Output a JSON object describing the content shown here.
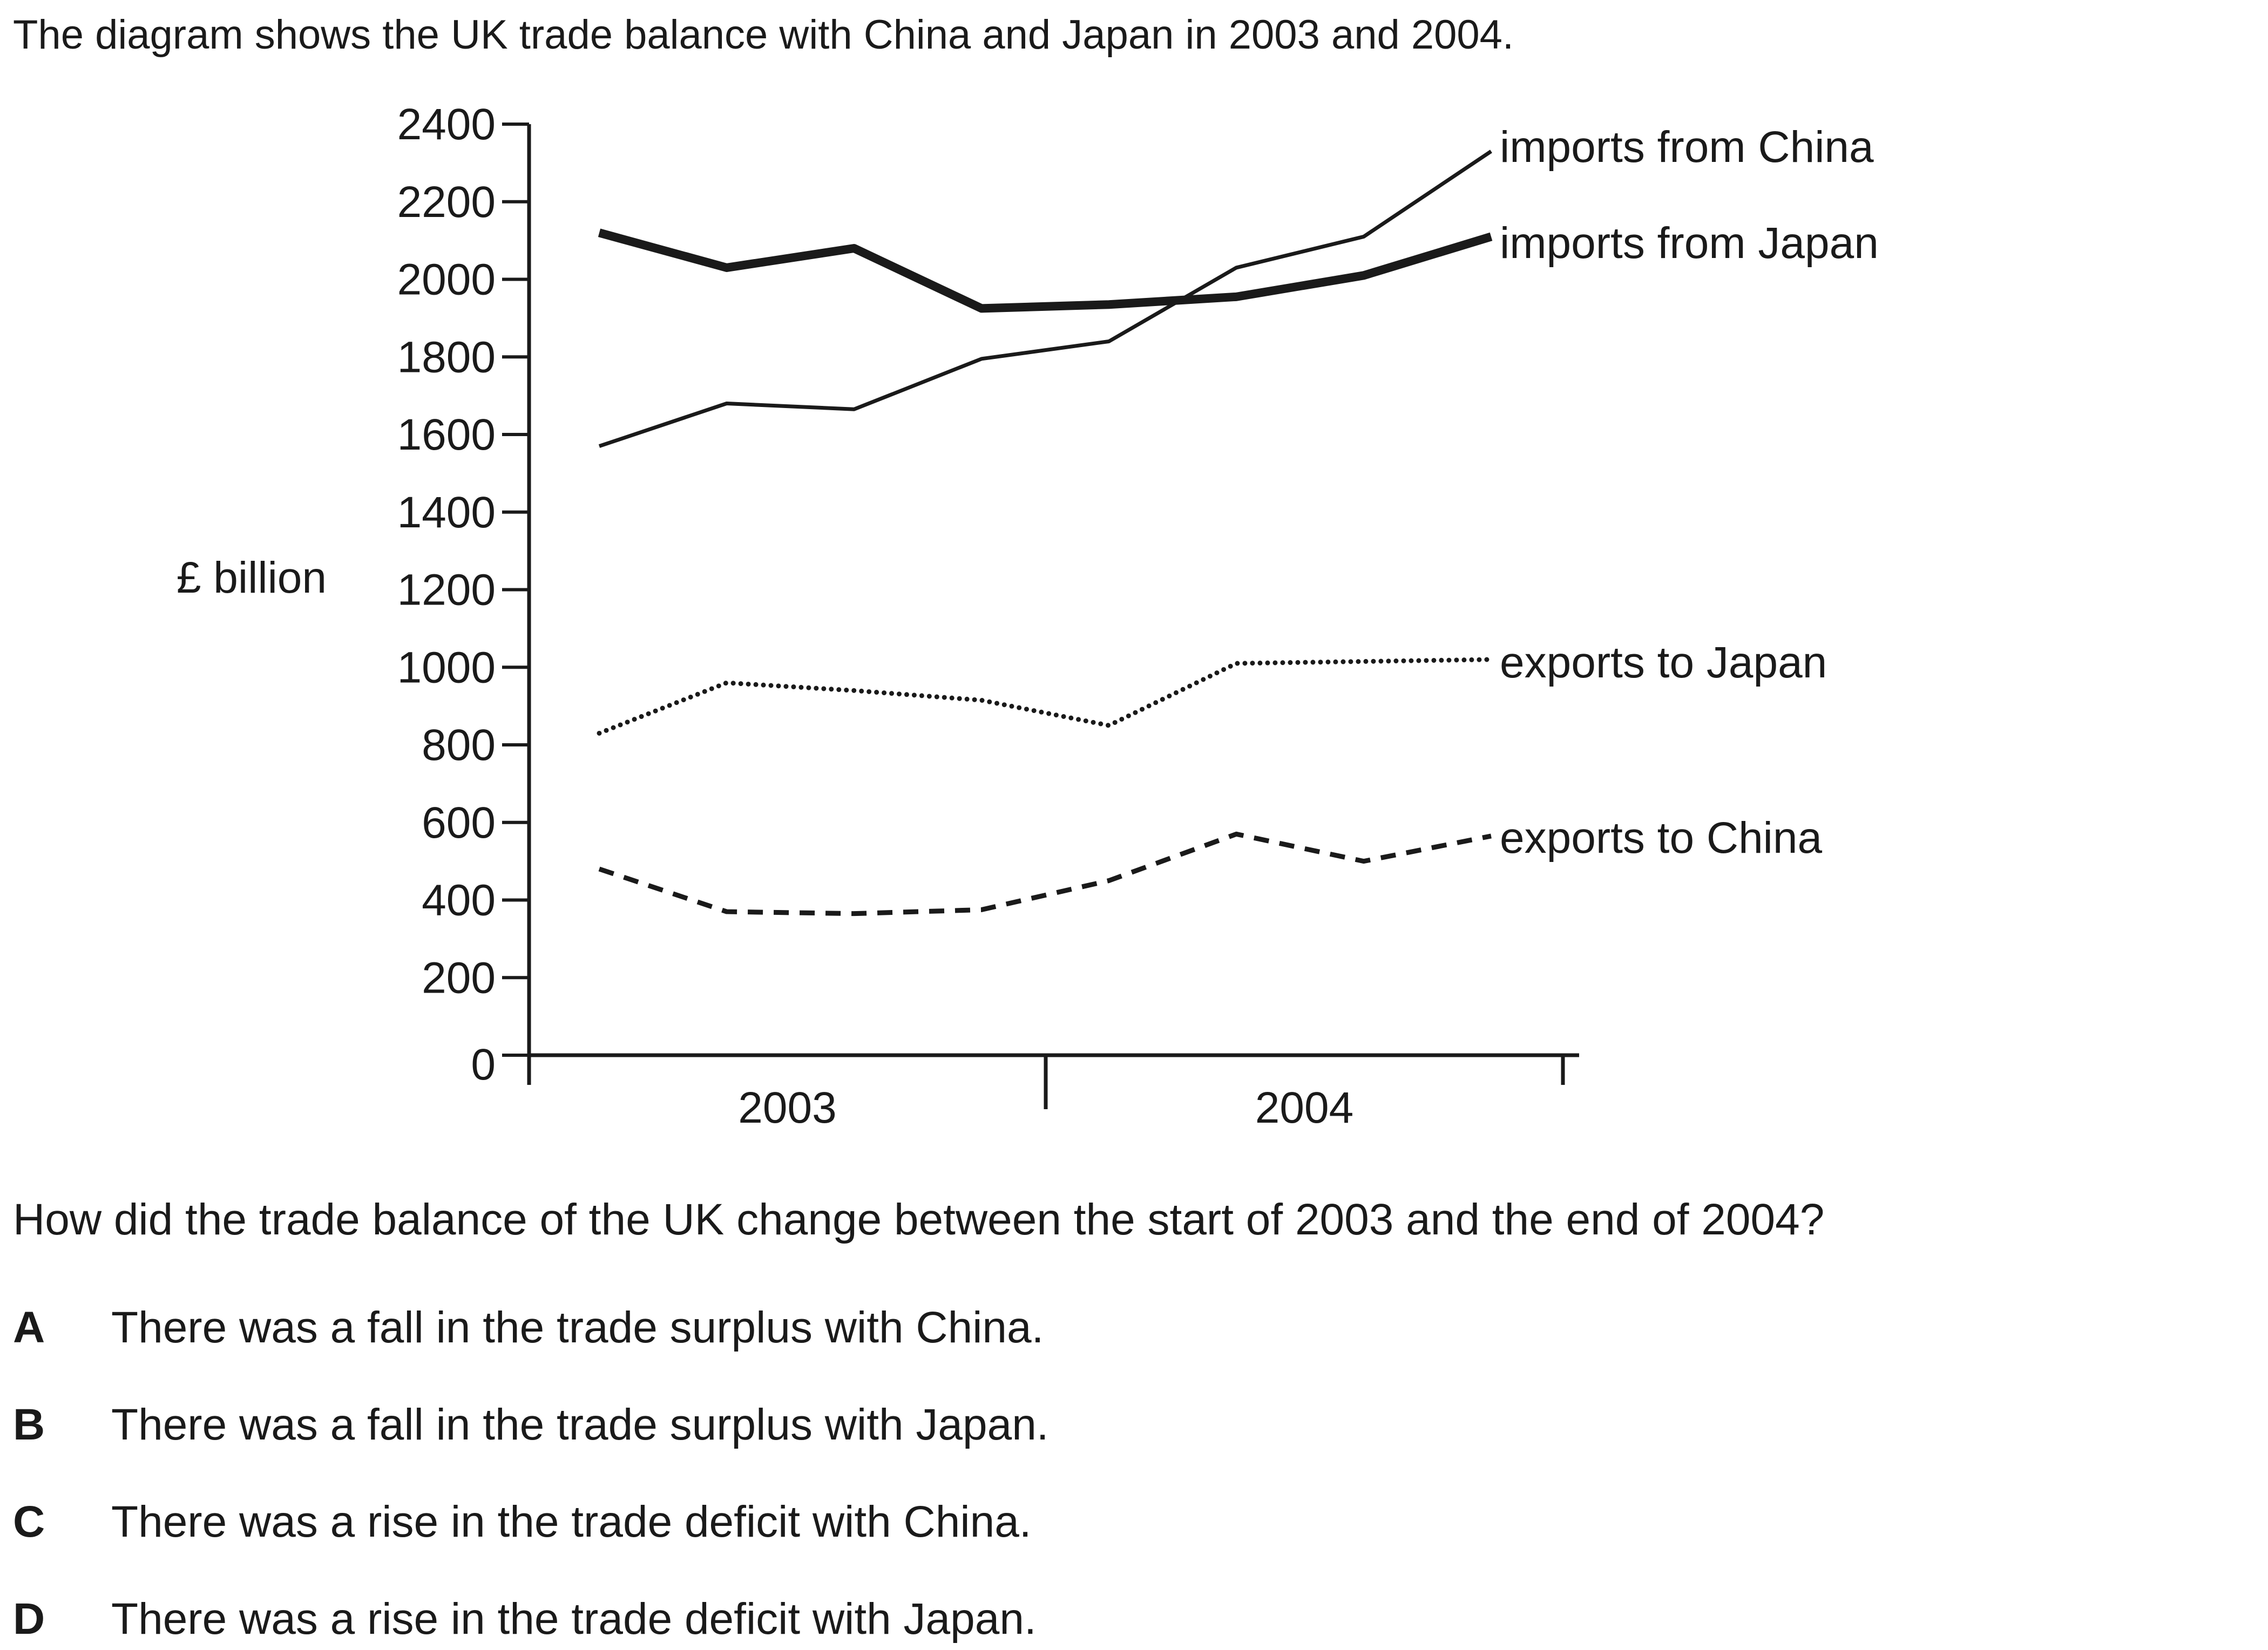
{
  "intro": "The diagram shows the UK trade balance with China and Japan in 2003 and 2004.",
  "chart_data": {
    "type": "line",
    "ylabel": "£ billion",
    "xlabel": "",
    "ylim": [
      0,
      2400
    ],
    "yticks": [
      0,
      200,
      400,
      600,
      800,
      1000,
      1200,
      1400,
      1600,
      1800,
      2000,
      2200,
      2400
    ],
    "year_labels": [
      "2003",
      "2004"
    ],
    "x": [
      "2003 Q1",
      "2003 Q2",
      "2003 Q3",
      "2003 Q4",
      "2004 Q1",
      "2004 Q2",
      "2004 Q3",
      "2004 Q4"
    ],
    "grid": false,
    "legend": "inline labels at right end of lines",
    "series": [
      {
        "name": "imports from China",
        "style": "thin",
        "values": [
          1570,
          1680,
          1665,
          1795,
          1840,
          2030,
          2110,
          2330
        ]
      },
      {
        "name": "imports from Japan",
        "style": "thick",
        "values": [
          2120,
          2030,
          2080,
          1925,
          1935,
          1955,
          2010,
          2110
        ]
      },
      {
        "name": "exports to Japan",
        "style": "dotted",
        "values": [
          830,
          960,
          940,
          915,
          850,
          1010,
          1015,
          1020
        ]
      },
      {
        "name": "exports to China",
        "style": "dashed",
        "values": [
          480,
          370,
          365,
          375,
          450,
          570,
          500,
          565
        ]
      }
    ]
  },
  "question": "How did the trade balance of the UK change between the start of 2003 and the end of 2004?",
  "options": [
    {
      "letter": "A",
      "text": "There was a fall in the trade surplus with China."
    },
    {
      "letter": "B",
      "text": "There was a fall in the trade surplus with Japan."
    },
    {
      "letter": "C",
      "text": "There was a rise in the trade deficit with China."
    },
    {
      "letter": "D",
      "text": "There was a rise in the trade deficit with Japan."
    }
  ]
}
